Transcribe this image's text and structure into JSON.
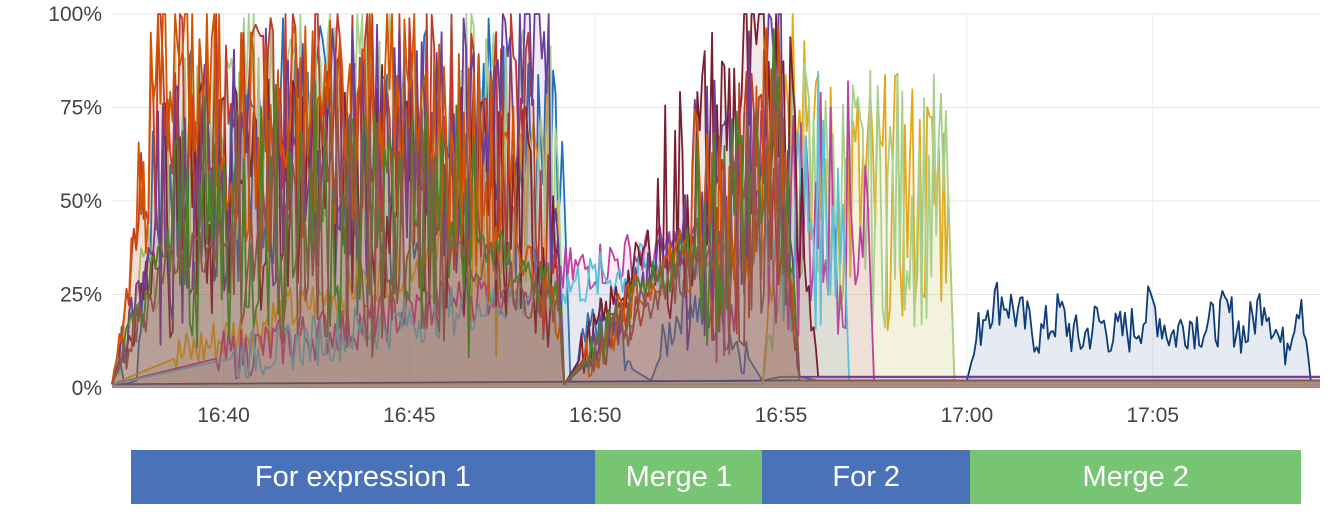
{
  "chart_data": {
    "type": "line",
    "stacked_fill": "area under each series shaded",
    "title": "",
    "xlabel": "",
    "ylabel": "",
    "ylim": [
      0,
      100
    ],
    "y_ticks": [
      "0%",
      "25%",
      "50%",
      "75%",
      "100%"
    ],
    "y_tick_values": [
      0,
      25,
      50,
      75,
      100
    ],
    "x_range": [
      "16:37",
      "17:09:30"
    ],
    "x_ticks": [
      "16:40",
      "16:45",
      "16:50",
      "16:55",
      "17:00",
      "17:05"
    ],
    "grid": true,
    "legend": "none",
    "series_count_approx": 16,
    "series": [
      {
        "color": "#1f6fbf",
        "points": [
          [
            "16:37:00",
            1
          ],
          [
            "16:37:10",
            10
          ],
          [
            "16:37:20",
            1
          ],
          [
            "16:37:40",
            2
          ],
          [
            "16:37:50",
            30
          ],
          [
            "16:38:30",
            60
          ],
          [
            "16:40:00",
            55
          ],
          [
            "16:42:00",
            70
          ],
          [
            "16:44:00",
            50
          ],
          [
            "16:46:00",
            80
          ],
          [
            "16:48:00",
            60
          ],
          [
            "16:49:00",
            51
          ],
          [
            "16:49:10",
            52
          ],
          [
            "16:49:20",
            2
          ],
          [
            "16:50:00",
            18
          ],
          [
            "16:50:40",
            15
          ],
          [
            "16:51:00",
            5
          ],
          [
            "16:51:30",
            2
          ],
          [
            "16:52:00",
            15
          ],
          [
            "16:52:30",
            25
          ],
          [
            "16:53:00",
            18
          ],
          [
            "16:53:30",
            16
          ],
          [
            "16:54:00",
            10
          ],
          [
            "16:54:30",
            2
          ],
          [
            "16:55:00",
            3
          ],
          [
            "16:55:30",
            3
          ],
          [
            "16:56:00",
            2
          ],
          [
            "17:09:30",
            2
          ]
        ]
      },
      {
        "color": "#0d3d7a",
        "points": [
          [
            "16:37:00",
            1
          ],
          [
            "16:55:00",
            2
          ],
          [
            "16:57:00",
            2
          ],
          [
            "16:59:00",
            2
          ],
          [
            "17:00:00",
            2
          ],
          [
            "17:00:30",
            22
          ],
          [
            "17:01:00",
            24
          ],
          [
            "17:01:30",
            18
          ],
          [
            "17:02:00",
            14
          ],
          [
            "17:02:30",
            20
          ],
          [
            "17:03:00",
            12
          ],
          [
            "17:03:30",
            18
          ],
          [
            "17:04:00",
            14
          ],
          [
            "17:04:30",
            16
          ],
          [
            "17:05:00",
            22
          ],
          [
            "17:05:30",
            14
          ],
          [
            "17:06:00",
            18
          ],
          [
            "17:06:30",
            16
          ],
          [
            "17:07:00",
            20
          ],
          [
            "17:07:30",
            14
          ],
          [
            "17:08:00",
            25
          ],
          [
            "17:08:30",
            10
          ],
          [
            "17:09:00",
            26
          ],
          [
            "17:09:15",
            2
          ],
          [
            "17:09:30",
            2
          ]
        ]
      },
      {
        "color": "#e6a817",
        "points": [
          [
            "16:37:00",
            1
          ],
          [
            "16:49:00",
            50
          ],
          [
            "16:49:10",
            1
          ],
          [
            "16:54:30",
            1
          ],
          [
            "16:55:00",
            80
          ],
          [
            "16:55:30",
            98
          ],
          [
            "16:56:00",
            52
          ],
          [
            "16:57:00",
            51
          ],
          [
            "16:58:00",
            50
          ],
          [
            "16:59:00",
            51
          ],
          [
            "16:59:30",
            52
          ],
          [
            "16:59:40",
            2
          ],
          [
            "17:09:30",
            2
          ]
        ]
      },
      {
        "color": "#a8d08d",
        "points": [
          [
            "16:37:00",
            1
          ],
          [
            "16:38:30",
            60
          ],
          [
            "16:42:00",
            75
          ],
          [
            "16:46:00",
            70
          ],
          [
            "16:49:00",
            60
          ],
          [
            "16:49:10",
            1
          ],
          [
            "16:54:30",
            1
          ],
          [
            "16:55:30",
            60
          ],
          [
            "16:56:00",
            50
          ],
          [
            "16:58:00",
            51
          ],
          [
            "16:59:30",
            50
          ],
          [
            "16:59:40",
            2
          ],
          [
            "17:09:30",
            2
          ]
        ]
      },
      {
        "color": "#c040a0",
        "points": [
          [
            "16:37:00",
            1
          ],
          [
            "16:55:00",
            45
          ],
          [
            "16:56:00",
            50
          ],
          [
            "16:57:00",
            48
          ],
          [
            "16:57:20",
            50
          ],
          [
            "16:57:30",
            2
          ],
          [
            "17:09:30",
            2
          ]
        ]
      },
      {
        "color": "#5bc0d9",
        "points": [
          [
            "16:37:00",
            1
          ],
          [
            "16:55:00",
            40
          ],
          [
            "16:56:00",
            50
          ],
          [
            "16:56:40",
            49
          ],
          [
            "16:56:50",
            2
          ],
          [
            "17:09:30",
            2
          ]
        ]
      },
      {
        "color": "#7a1f2e",
        "points": [
          [
            "16:37:00",
            1
          ],
          [
            "16:38:30",
            45
          ],
          [
            "16:42:00",
            60
          ],
          [
            "16:46:00",
            55
          ],
          [
            "16:49:00",
            40
          ],
          [
            "16:49:10",
            1
          ],
          [
            "16:55:00",
            95
          ],
          [
            "16:55:30",
            50
          ],
          [
            "16:56:00",
            3
          ],
          [
            "17:09:30",
            3
          ]
        ]
      },
      {
        "color": "#c0392b",
        "points": [
          [
            "16:37:00",
            1
          ],
          [
            "16:38:30",
            90
          ],
          [
            "16:40:00",
            70
          ],
          [
            "16:43:00",
            85
          ],
          [
            "16:46:00",
            65
          ],
          [
            "16:48:00",
            75
          ],
          [
            "16:49:00",
            30
          ],
          [
            "16:49:10",
            1
          ],
          [
            "16:55:00",
            60
          ],
          [
            "16:55:30",
            2
          ],
          [
            "17:09:30",
            2
          ]
        ]
      },
      {
        "color": "#6a3d9a",
        "points": [
          [
            "16:37:00",
            1
          ],
          [
            "16:38:30",
            50
          ],
          [
            "16:42:00",
            65
          ],
          [
            "16:46:00",
            60
          ],
          [
            "16:48:30",
            98
          ],
          [
            "16:49:00",
            40
          ],
          [
            "16:49:10",
            1
          ],
          [
            "16:55:00",
            75
          ],
          [
            "16:55:30",
            3
          ],
          [
            "17:09:30",
            3
          ]
        ]
      },
      {
        "color": "#d35400",
        "points": [
          [
            "16:37:00",
            1
          ],
          [
            "16:38:30",
            95
          ],
          [
            "16:41:00",
            60
          ],
          [
            "16:44:00",
            80
          ],
          [
            "16:47:00",
            55
          ],
          [
            "16:49:00",
            20
          ],
          [
            "16:49:10",
            1
          ],
          [
            "16:55:00",
            70
          ],
          [
            "16:55:30",
            2
          ],
          [
            "17:09:30",
            2
          ]
        ]
      },
      {
        "color": "#4d7f2a",
        "points": [
          [
            "16:37:00",
            1
          ],
          [
            "16:38:30",
            40
          ],
          [
            "16:42:00",
            50
          ],
          [
            "16:46:00",
            45
          ],
          [
            "16:49:00",
            25
          ],
          [
            "16:49:10",
            1
          ],
          [
            "16:55:00",
            65
          ],
          [
            "16:55:30",
            2
          ],
          [
            "17:09:30",
            2
          ]
        ]
      },
      {
        "color": "#8c564b",
        "points": [
          [
            "16:37:00",
            1
          ],
          [
            "16:38:30",
            35
          ],
          [
            "16:42:00",
            45
          ],
          [
            "16:46:00",
            40
          ],
          [
            "16:49:00",
            20
          ],
          [
            "16:49:10",
            1
          ],
          [
            "16:55:00",
            55
          ],
          [
            "16:55:30",
            2
          ],
          [
            "17:09:30",
            2
          ]
        ]
      }
    ]
  },
  "phases": [
    {
      "label": "For expression 1",
      "color": "#4a72b8",
      "start": "16:37:30",
      "end": "16:50:00"
    },
    {
      "label": "Merge 1",
      "color": "#77c472",
      "start": "16:50:00",
      "end": "16:54:30"
    },
    {
      "label": "For 2",
      "color": "#4a72b8",
      "start": "16:54:30",
      "end": "17:00:05"
    },
    {
      "label": "Merge 2",
      "color": "#77c472",
      "start": "17:00:05",
      "end": "17:09:00"
    }
  ]
}
